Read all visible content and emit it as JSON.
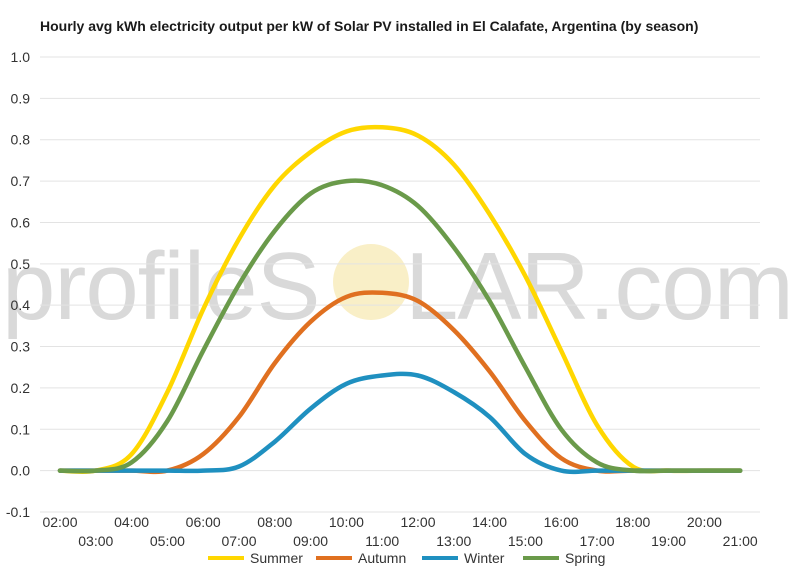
{
  "chart_data": {
    "type": "line",
    "title": "Hourly avg kWh electricity output per kW of Solar PV installed in El Calafate, Argentina (by season)",
    "xlabel": "",
    "ylabel": "",
    "ylim": [
      -0.1,
      1.0
    ],
    "yticks": [
      "1.0",
      "0.9",
      "0.8",
      "0.7",
      "0.6",
      "0.5",
      "0.4",
      "0.3",
      "0.2",
      "0.1",
      "0.0",
      "-0.1"
    ],
    "ytick_values": [
      1.0,
      0.9,
      0.8,
      0.7,
      0.6,
      0.5,
      0.4,
      0.3,
      0.2,
      0.1,
      0.0,
      -0.1
    ],
    "categories": [
      "02:00",
      "03:00",
      "04:00",
      "05:00",
      "06:00",
      "07:00",
      "08:00",
      "09:00",
      "10:00",
      "11:00",
      "12:00",
      "13:00",
      "14:00",
      "15:00",
      "16:00",
      "17:00",
      "18:00",
      "19:00",
      "20:00",
      "21:00"
    ],
    "grid": true,
    "legend_position": "bottom",
    "series": [
      {
        "name": "Summer",
        "color": "#FFD700",
        "values": [
          0.0,
          0.0,
          0.04,
          0.19,
          0.39,
          0.56,
          0.69,
          0.77,
          0.82,
          0.83,
          0.81,
          0.74,
          0.62,
          0.47,
          0.29,
          0.11,
          0.01,
          0.0,
          0.0,
          0.0
        ]
      },
      {
        "name": "Autumn",
        "color": "#E07020",
        "values": [
          0.0,
          0.0,
          0.0,
          0.0,
          0.04,
          0.13,
          0.26,
          0.36,
          0.42,
          0.43,
          0.41,
          0.34,
          0.24,
          0.12,
          0.03,
          0.0,
          0.0,
          0.0,
          0.0,
          0.0
        ]
      },
      {
        "name": "Winter",
        "color": "#1F90C0",
        "values": [
          0.0,
          0.0,
          0.0,
          0.0,
          0.0,
          0.01,
          0.07,
          0.15,
          0.21,
          0.23,
          0.23,
          0.19,
          0.13,
          0.04,
          0.0,
          0.0,
          0.0,
          0.0,
          0.0,
          0.0
        ]
      },
      {
        "name": "Spring",
        "color": "#6A9A4A",
        "values": [
          0.0,
          0.0,
          0.02,
          0.12,
          0.29,
          0.45,
          0.58,
          0.67,
          0.7,
          0.69,
          0.64,
          0.54,
          0.41,
          0.25,
          0.1,
          0.02,
          0.0,
          0.0,
          0.0,
          0.0
        ]
      }
    ]
  },
  "watermark": {
    "left_text": "profileS",
    "right_text": "LAR.com"
  }
}
